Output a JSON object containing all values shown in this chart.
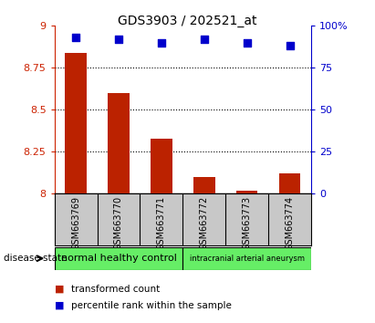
{
  "title": "GDS3903 / 202521_at",
  "samples": [
    "GSM663769",
    "GSM663770",
    "GSM663771",
    "GSM663772",
    "GSM663773",
    "GSM663774"
  ],
  "transformed_count": [
    8.84,
    8.6,
    8.33,
    8.1,
    8.02,
    8.12
  ],
  "percentile_rank": [
    93,
    92,
    90,
    92,
    90,
    88
  ],
  "ylim_left": [
    8.0,
    9.0
  ],
  "ylim_right": [
    0,
    100
  ],
  "yticks_left": [
    8.0,
    8.25,
    8.5,
    8.75,
    9.0
  ],
  "ytick_labels_left": [
    "8",
    "8.25",
    "8.5",
    "8.75",
    "9"
  ],
  "yticks_right": [
    0,
    25,
    50,
    75,
    100
  ],
  "ytick_labels_right": [
    "0",
    "25",
    "50",
    "75",
    "100%"
  ],
  "bar_color": "#bb2200",
  "scatter_color": "#0000cc",
  "bar_width": 0.5,
  "group1_label": "normal healthy control",
  "group2_label": "intracranial arterial aneurysm",
  "group1_color": "#66ee66",
  "group2_color": "#66ee66",
  "group_label_prefix": "disease state",
  "legend_bar_label": "transformed count",
  "legend_scatter_label": "percentile rank within the sample",
  "title_fontsize": 10,
  "tick_label_fontsize": 8,
  "axis_color_left": "#cc2200",
  "axis_color_right": "#0000cc",
  "plot_bg_color": "#ffffff",
  "sample_area_color": "#c8c8c8",
  "grid_color": "black"
}
